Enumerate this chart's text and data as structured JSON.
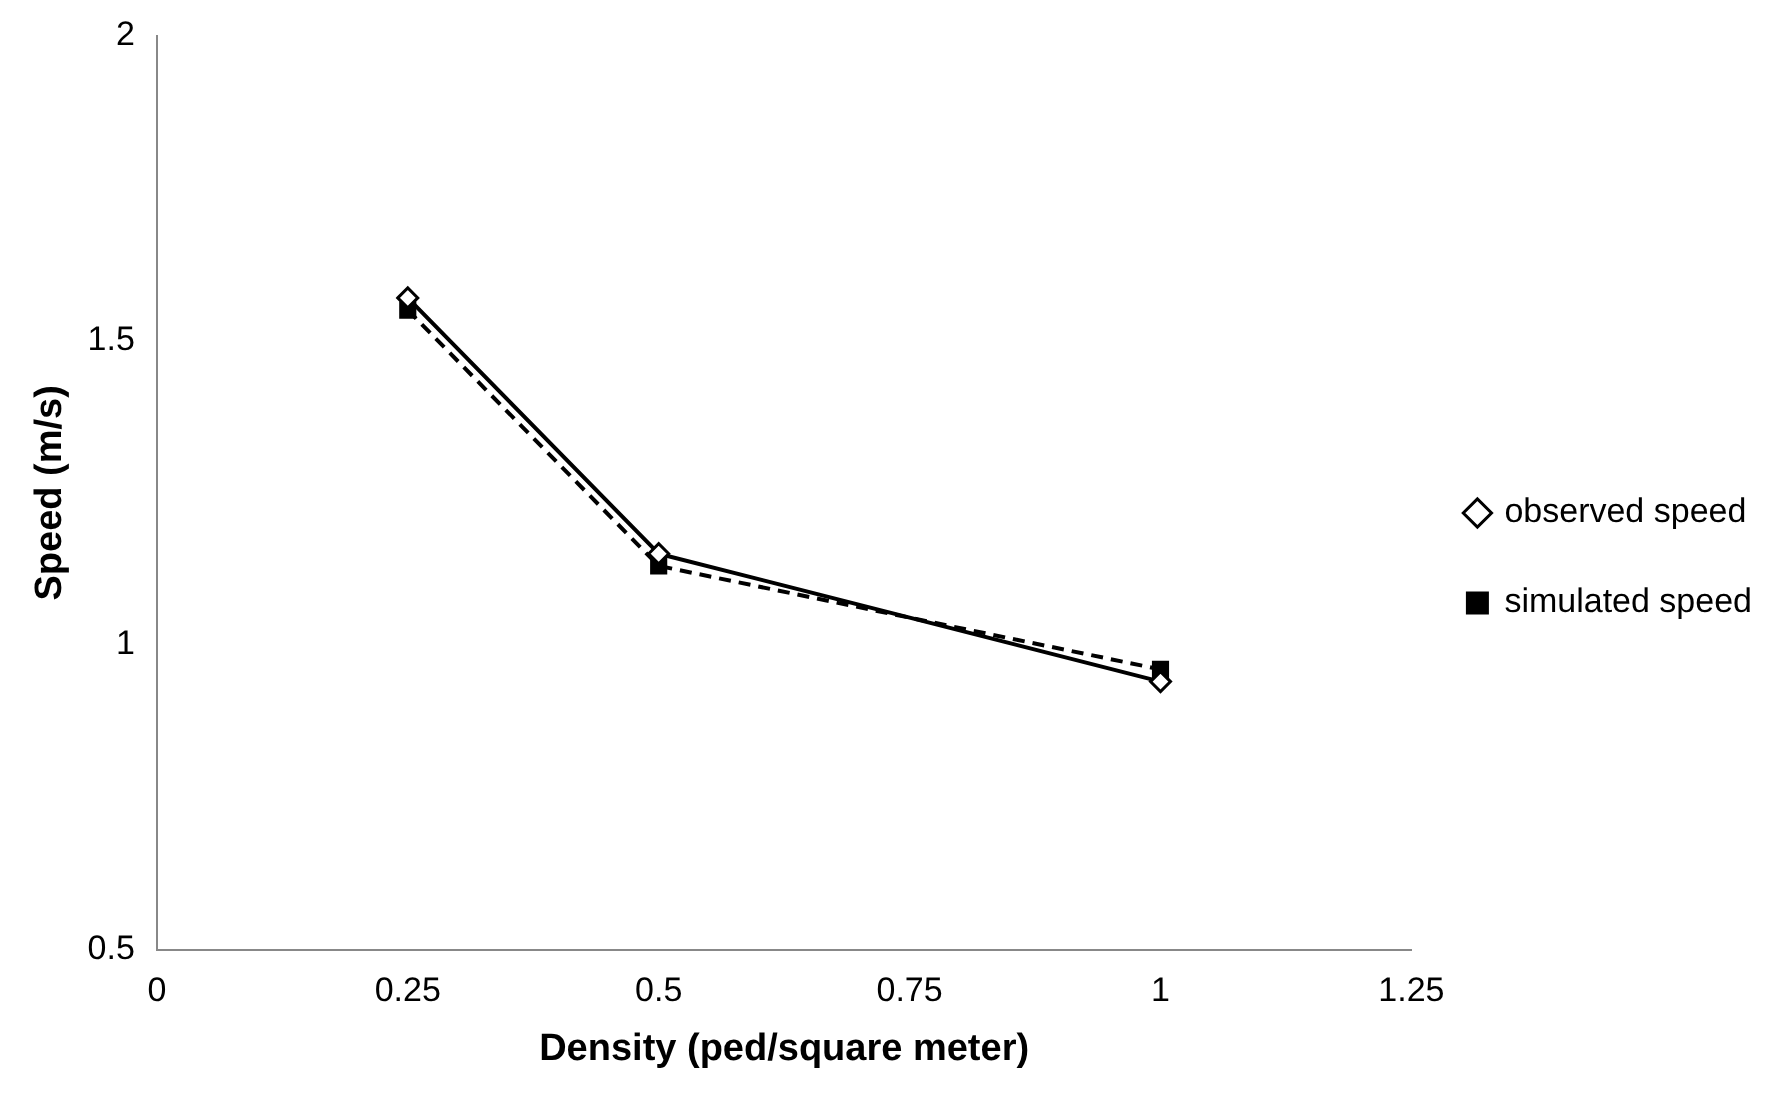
{
  "chart_data": {
    "type": "line",
    "xlabel": "Density (ped/square meter)",
    "ylabel": "Speed (m/s)",
    "x": [
      0.25,
      0.5,
      1
    ],
    "series": [
      {
        "name": "observed speed",
        "color": "#000000",
        "values": [
          1.57,
          1.15,
          0.94
        ],
        "marker": "diamond",
        "line_style": "solid"
      },
      {
        "name": "simulated speed",
        "color": "#000000",
        "values": [
          1.55,
          1.13,
          0.96
        ],
        "marker": "square",
        "line_style": "dashed"
      }
    ],
    "xlim": [
      0,
      1.25
    ],
    "xticks": [
      0,
      0.25,
      0.5,
      0.75,
      1,
      1.25
    ],
    "ylim": [
      0.5,
      2
    ],
    "yticks": [
      0.5,
      1,
      1.5,
      2
    ],
    "grid": false,
    "legend": "right"
  }
}
